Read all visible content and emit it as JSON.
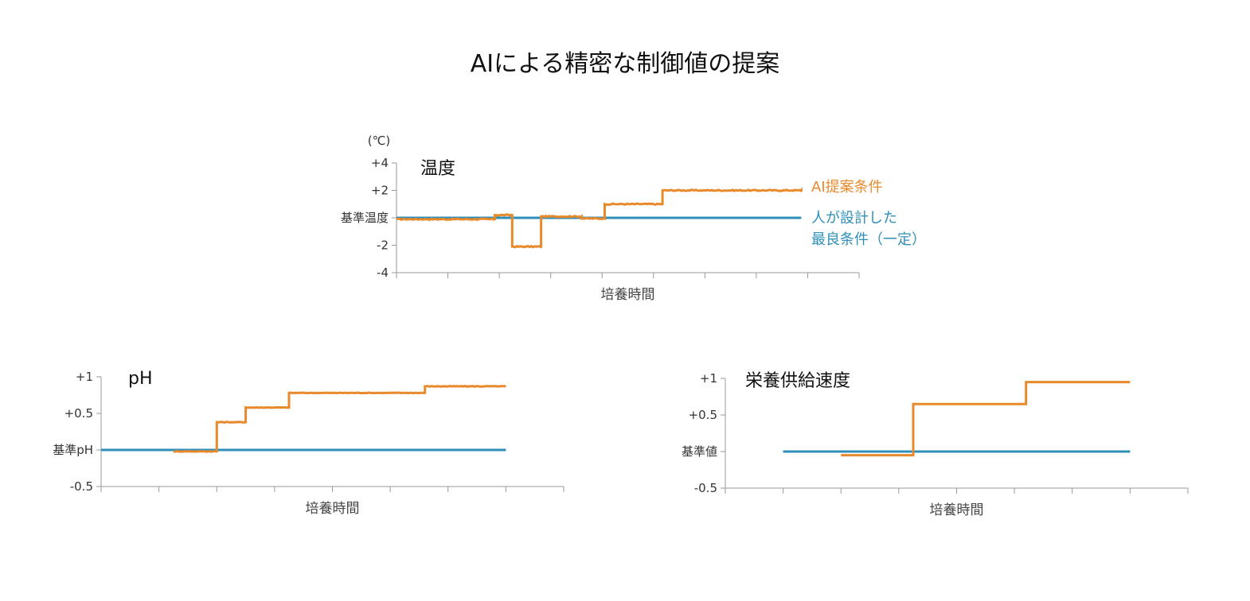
{
  "page": {
    "title": "AIによる精密な制御値の提案"
  },
  "colors": {
    "ai": "#E8892B",
    "baseline": "#2E8FB8",
    "axis": "#999999",
    "text": "#333333"
  },
  "chart_data": [
    {
      "id": "temperature",
      "type": "line",
      "title": "温度",
      "unit_label": "(℃)",
      "xlabel": "培養時間",
      "ylim": [
        -4,
        4
      ],
      "yticks": [
        {
          "value": 4,
          "label": "+4"
        },
        {
          "value": 2,
          "label": "+2"
        },
        {
          "value": 0,
          "label": "基準温度"
        },
        {
          "value": -2,
          "label": "-2"
        },
        {
          "value": -4,
          "label": "-4"
        }
      ],
      "xlim": [
        0,
        8
      ],
      "xtick_count": 9,
      "legend": [
        {
          "name": "AI提案条件",
          "color": "#E8892B"
        },
        {
          "name": "人が設計した 最良条件（一定）",
          "lines": [
            "人が設計した",
            "最良条件（一定）"
          ],
          "color": "#2E8FB8"
        }
      ],
      "series": [
        {
          "name": "AI提案条件",
          "color": "#E8892B",
          "noise": 0.08,
          "steps": [
            [
              0,
              -0.1
            ],
            [
              1.7,
              0.2
            ],
            [
              2.0,
              -2.1
            ],
            [
              2.5,
              0.1
            ],
            [
              3.2,
              -0.05
            ],
            [
              3.6,
              1.0
            ],
            [
              4.6,
              2.0
            ],
            [
              7.0,
              1.9
            ]
          ],
          "x_end": 7.0
        },
        {
          "name": "人が設計した最良条件（一定）",
          "color": "#2E8FB8",
          "noise": 0,
          "steps": [
            [
              0,
              0
            ]
          ],
          "x_end": 7.0
        }
      ]
    },
    {
      "id": "ph",
      "type": "line",
      "title": "pH",
      "xlabel": "培養時間",
      "ylim": [
        -0.5,
        1
      ],
      "yticks": [
        {
          "value": 1,
          "label": "+1"
        },
        {
          "value": 0.5,
          "label": "+0.5"
        },
        {
          "value": 0,
          "label": "基準pH"
        },
        {
          "value": -0.5,
          "label": "-0.5"
        }
      ],
      "xlim": [
        0,
        8
      ],
      "xtick_count": 8,
      "series": [
        {
          "name": "AI提案条件",
          "color": "#E8892B",
          "noise": 0.008,
          "steps": [
            [
              1.25,
              -0.02
            ],
            [
              2.0,
              0.38
            ],
            [
              2.5,
              0.58
            ],
            [
              3.25,
              0.78
            ],
            [
              5.6,
              0.87
            ]
          ],
          "x_end": 7.0
        },
        {
          "name": "人が設計した最良条件（一定）",
          "color": "#2E8FB8",
          "noise": 0,
          "steps": [
            [
              0,
              0
            ]
          ],
          "x_end": 7.0
        }
      ]
    },
    {
      "id": "feed-rate",
      "type": "line",
      "title": "栄養供給速度",
      "xlabel": "培養時間",
      "ylim": [
        -0.5,
        1
      ],
      "yticks": [
        {
          "value": 1,
          "label": "+1"
        },
        {
          "value": 0.5,
          "label": "+0.5"
        },
        {
          "value": 0,
          "label": "基準値"
        },
        {
          "value": -0.5,
          "label": "-0.5"
        }
      ],
      "xlim": [
        0,
        8
      ],
      "xtick_count": 8,
      "series": [
        {
          "name": "AI提案条件",
          "color": "#E8892B",
          "noise": 0,
          "steps": [
            [
              2.0,
              -0.05
            ],
            [
              3.25,
              0.65
            ],
            [
              5.2,
              0.95
            ]
          ],
          "x_end": 7.0
        },
        {
          "name": "人が設計した最良条件（一定）",
          "color": "#2E8FB8",
          "noise": 0,
          "steps": [
            [
              1.0,
              0
            ]
          ],
          "x_end": 7.0
        }
      ]
    }
  ]
}
